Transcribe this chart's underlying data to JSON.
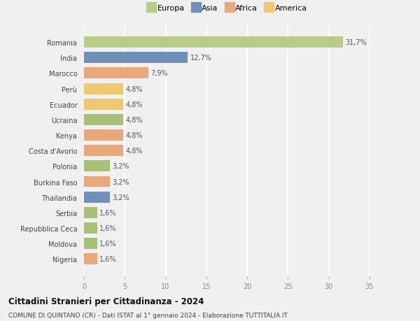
{
  "categories": [
    "Nigeria",
    "Moldova",
    "Repubblica Ceca",
    "Serbia",
    "Thailandia",
    "Burkina Faso",
    "Polonia",
    "Costa d'Avorio",
    "Kenya",
    "Ucraina",
    "Ecuador",
    "Perù",
    "Marocco",
    "India",
    "Romania"
  ],
  "values": [
    1.6,
    1.6,
    1.6,
    1.6,
    3.2,
    3.2,
    3.2,
    4.8,
    4.8,
    4.8,
    4.8,
    4.8,
    7.9,
    12.7,
    31.7
  ],
  "colors": [
    "#e8a87c",
    "#a8bf7a",
    "#a8bf7a",
    "#a8bf7a",
    "#7090b8",
    "#e8a87c",
    "#a8bf7a",
    "#e8a87c",
    "#e8a87c",
    "#a8bf7a",
    "#f0c870",
    "#f0c870",
    "#e8a87c",
    "#7090b8",
    "#b8cc88"
  ],
  "bar_labels": [
    "1,6%",
    "1,6%",
    "1,6%",
    "1,6%",
    "3,2%",
    "3,2%",
    "3,2%",
    "4,8%",
    "4,8%",
    "4,8%",
    "4,8%",
    "4,8%",
    "7,9%",
    "12,7%",
    "31,7%"
  ],
  "legend_labels": [
    "Europa",
    "Asia",
    "Africa",
    "America"
  ],
  "legend_colors": [
    "#b8cc88",
    "#7090b8",
    "#e8a87c",
    "#f0c870"
  ],
  "title": "Cittadini Stranieri per Cittadinanza - 2024",
  "subtitle": "COMUNE DI QUINTANO (CR) - Dati ISTAT al 1° gennaio 2024 - Elaborazione TUTTITALIA.IT",
  "xlim": [
    0,
    35
  ],
  "xticks": [
    0,
    5,
    10,
    15,
    20,
    25,
    30,
    35
  ],
  "background_color": "#f0f0f0",
  "grid_color": "#ffffff",
  "bar_height": 0.72
}
